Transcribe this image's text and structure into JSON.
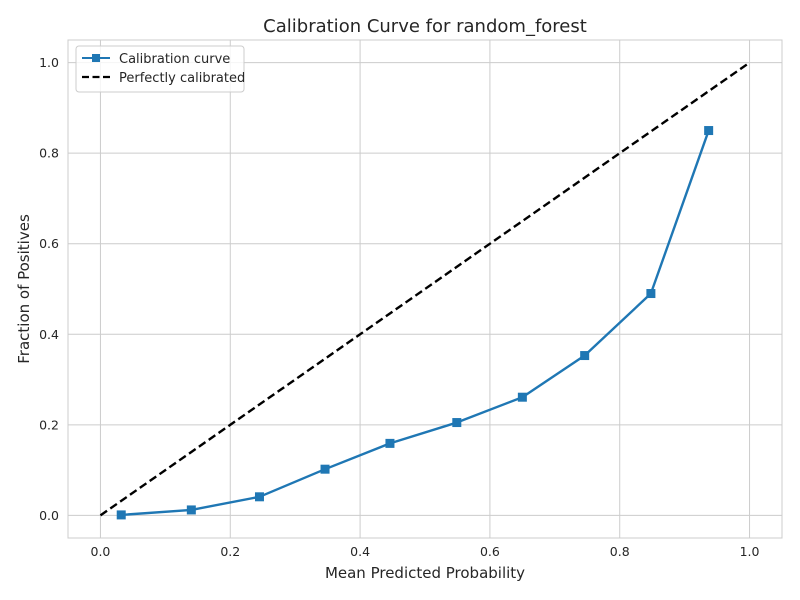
{
  "chart_data": {
    "type": "line",
    "title": "Calibration Curve for random_forest",
    "xlabel": "Mean Predicted Probability",
    "ylabel": "Fraction of Positives",
    "xlim": [
      -0.05,
      1.05
    ],
    "ylim": [
      -0.05,
      1.05
    ],
    "xticks": [
      "0.0",
      "0.2",
      "0.4",
      "0.6",
      "0.8",
      "1.0"
    ],
    "yticks": [
      "0.0",
      "0.2",
      "0.4",
      "0.6",
      "0.8",
      "1.0"
    ],
    "grid": true,
    "legend_position": "top-left",
    "series": [
      {
        "name": "Calibration curve",
        "color": "#1f77b4",
        "marker": "square",
        "x": [
          0.032,
          0.14,
          0.245,
          0.346,
          0.446,
          0.549,
          0.65,
          0.746,
          0.848,
          0.937
        ],
        "y": [
          0.001,
          0.012,
          0.041,
          0.102,
          0.159,
          0.205,
          0.261,
          0.353,
          0.49,
          0.85
        ]
      },
      {
        "name": "Perfectly calibrated",
        "color": "#000000",
        "style": "dashed",
        "x": [
          0,
          1
        ],
        "y": [
          0,
          1
        ]
      }
    ]
  }
}
